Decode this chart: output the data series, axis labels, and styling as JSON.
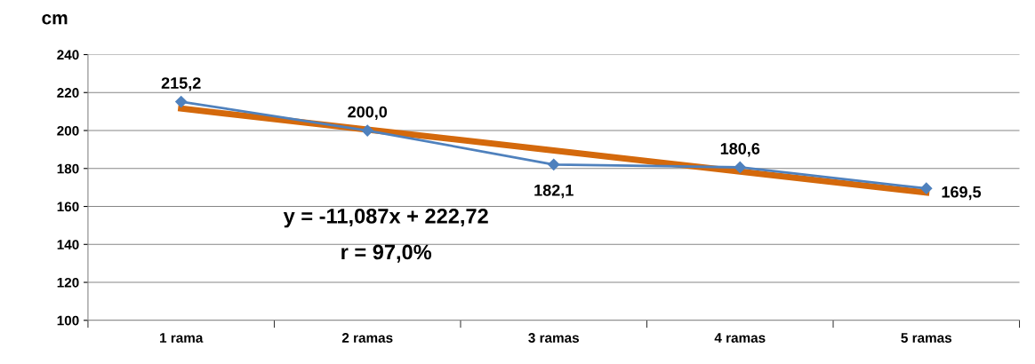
{
  "chart_data": {
    "type": "line",
    "ylabel": "cm",
    "categories": [
      "1 rama",
      "2 ramas",
      "3 ramas",
      "4 ramas",
      "5 ramas"
    ],
    "series": [
      {
        "color": "#4f81bd",
        "values": [
          215.2,
          200.0,
          182.1,
          180.6,
          169.5
        ],
        "value_labels": [
          "215,2",
          "200,0",
          "182,1",
          "180,6",
          "169,5"
        ],
        "marker": "diamond"
      },
      {
        "color": "#d4690c",
        "values": [
          211.6,
          200.5,
          189.5,
          178.4,
          167.3
        ],
        "marker": "none"
      }
    ],
    "ylim": [
      100,
      240
    ],
    "yticks": [
      100,
      120,
      140,
      160,
      180,
      200,
      220,
      240
    ],
    "grid": "y",
    "legend": false,
    "annotations": [
      "y = -11,087x + 222,72",
      "r = 97,0%"
    ]
  }
}
